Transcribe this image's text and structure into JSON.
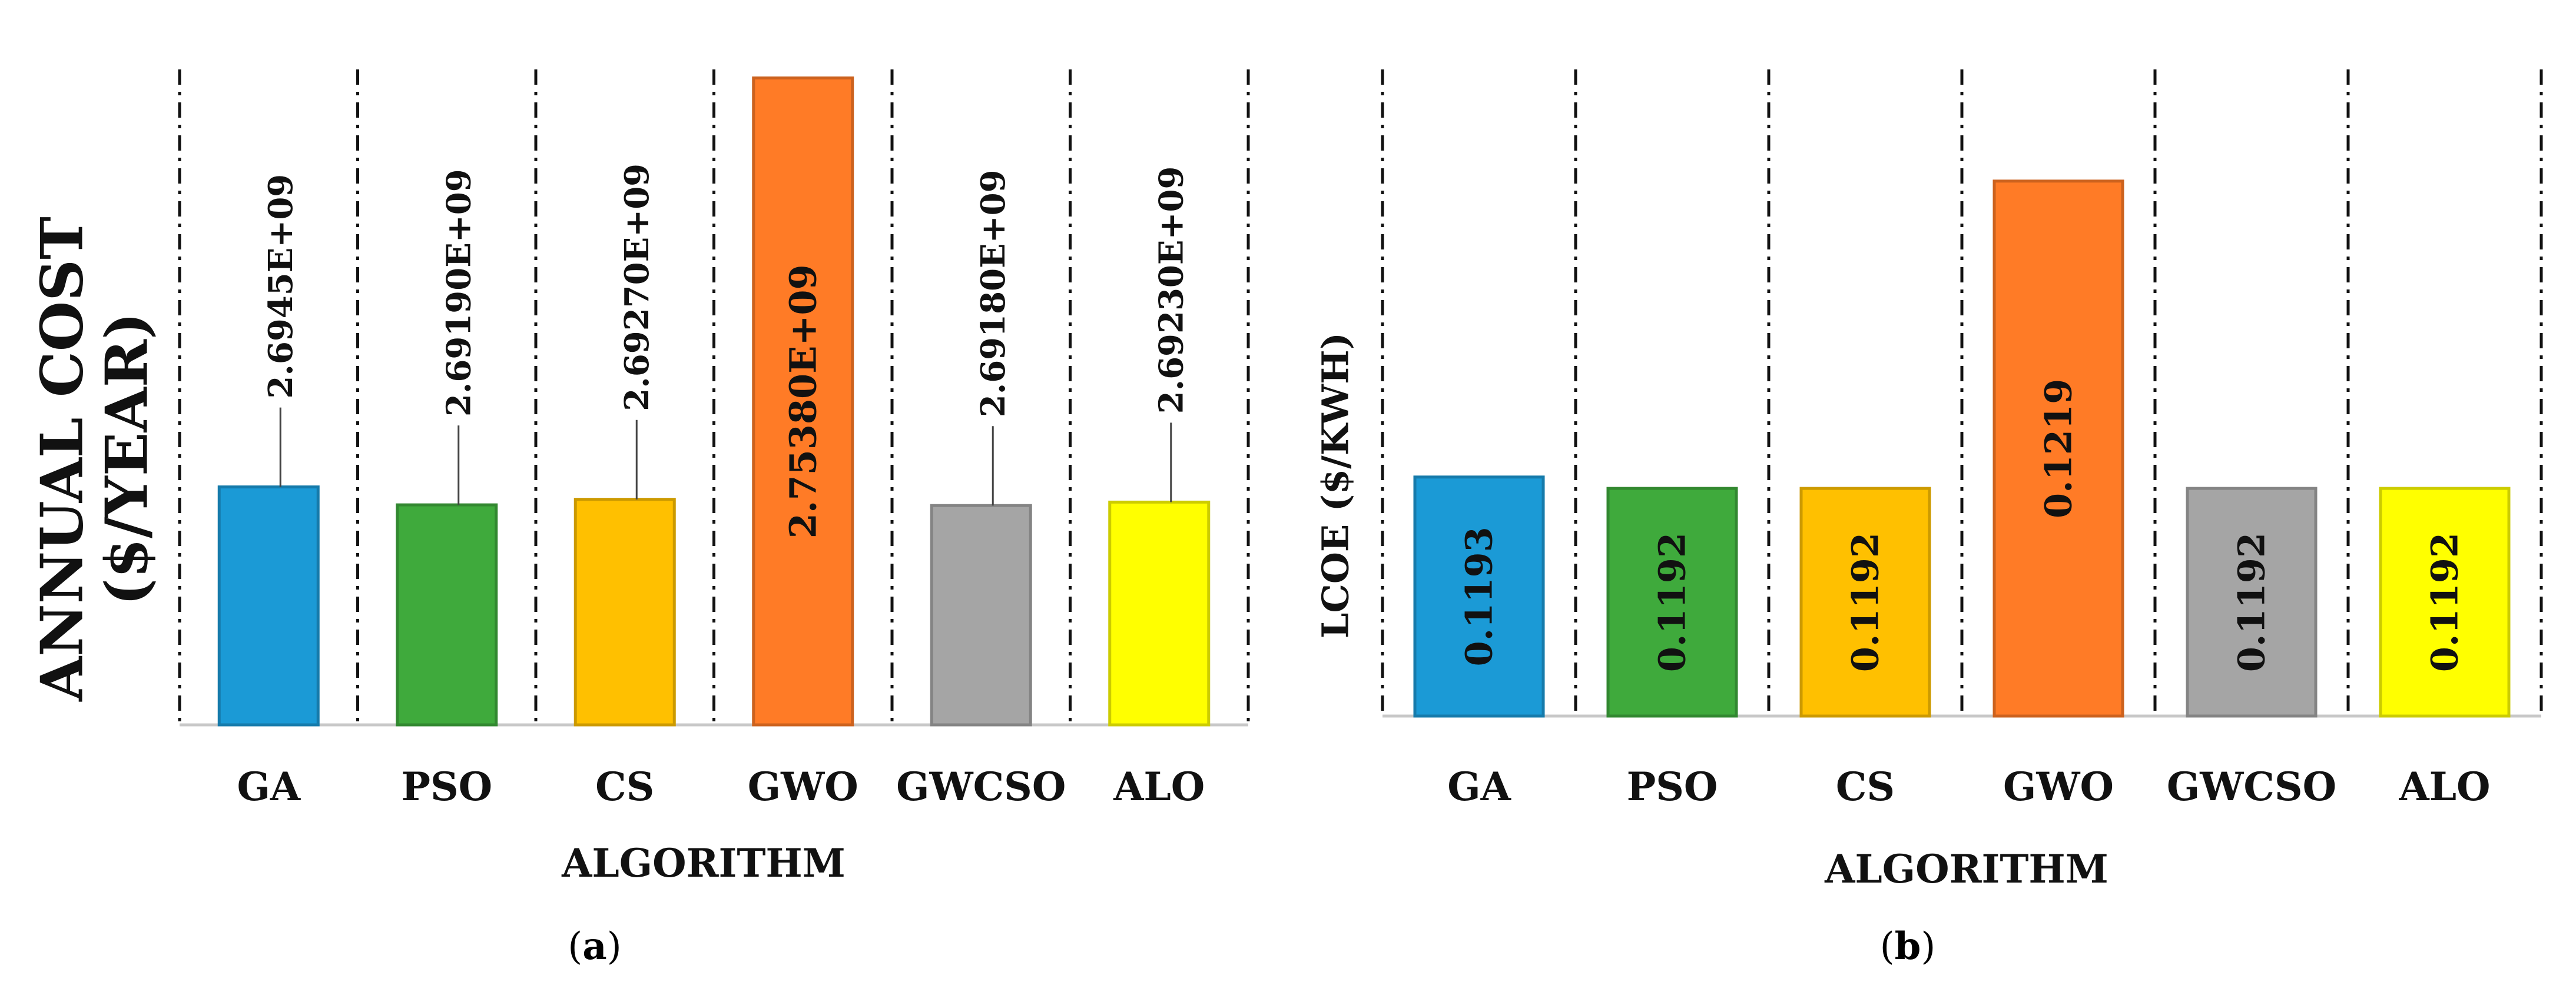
{
  "panels": [
    {
      "caption": "(a)",
      "caption_parts": [
        "(",
        "a",
        ")"
      ]
    },
    {
      "caption": "(b)",
      "caption_parts": [
        "(",
        "b",
        ")"
      ]
    }
  ],
  "chart_data": [
    {
      "type": "bar",
      "categories": [
        "GA",
        "PSO",
        "CS",
        "GWO",
        "GWCSO",
        "ALO"
      ],
      "values": [
        2694500000,
        2691900000,
        2692700000,
        2753800000,
        2691800000,
        2692300000
      ],
      "data_labels": [
        "2.6945E+09",
        "2.69190E+09",
        "2.69270E+09",
        "2.75380E+09",
        "2.69180E+09",
        "2.69230E+09"
      ],
      "colors": [
        "#1b9ad6",
        "#3faa3c",
        "#ffc000",
        "#ff7b26",
        "#a5a5a5",
        "#ffff00"
      ],
      "xlabel": "ALGORITHM",
      "ylabel_lines": [
        "ANNUAL COST",
        "($/YEAR)"
      ],
      "ylim": [
        2660000000,
        2757000000
      ],
      "grid": "vertical dash-dot separators",
      "label_position": "callout above bar (inside bar for GWO)"
    },
    {
      "type": "bar",
      "categories": [
        "GA",
        "PSO",
        "CS",
        "GWO",
        "GWCSO",
        "ALO"
      ],
      "values": [
        0.1193,
        0.1192,
        0.1192,
        0.1219,
        0.1192,
        0.1192
      ],
      "data_labels": [
        "0.1193",
        "0.1192",
        "0.1192",
        "0.1219",
        "0.1192",
        "0.1192"
      ],
      "colors": [
        "#1b9ad6",
        "#3faa3c",
        "#ffc000",
        "#ff7b26",
        "#a5a5a5",
        "#ffff00"
      ],
      "xlabel": "ALGORITHM",
      "ylabel": "LCOE ($/KWH)",
      "ylim": [
        0.1172,
        0.123
      ],
      "grid": "vertical dash-dot separators",
      "label_position": "inside bar, rotated"
    }
  ]
}
